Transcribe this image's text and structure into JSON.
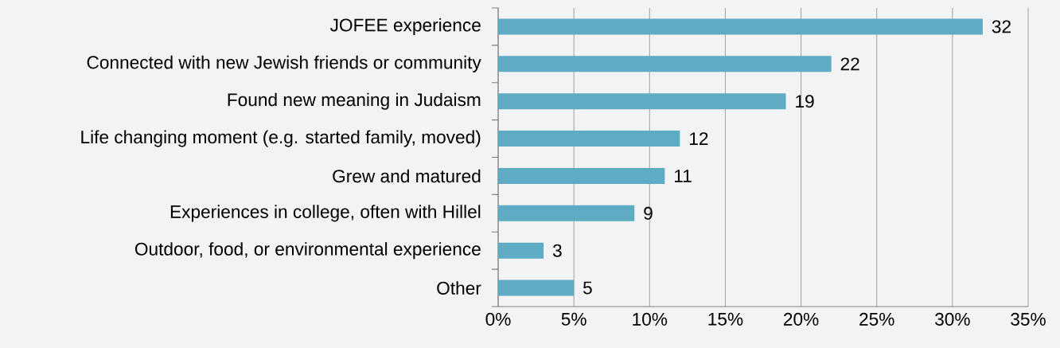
{
  "chart_data": {
    "type": "bar",
    "orientation": "horizontal",
    "categories": [
      "JOFEE experience",
      "Connected with new Jewish friends or community",
      "Found new meaning in Judaism",
      "Life changing moment (e.g. started family, moved)",
      "Grew and matured",
      "Experiences in college, often with Hillel",
      "Outdoor, food, or environmental experience",
      "Other"
    ],
    "values": [
      32,
      22,
      19,
      12,
      11,
      9,
      3,
      5
    ],
    "color": "#5eacc4",
    "data_labels": true,
    "xlim": [
      0,
      35
    ],
    "xticks": [
      {
        "value": 0,
        "label": "0%"
      },
      {
        "value": 5,
        "label": "5%"
      },
      {
        "value": 10,
        "label": "10%"
      },
      {
        "value": 15,
        "label": "15%"
      },
      {
        "value": 20,
        "label": "20%"
      },
      {
        "value": 25,
        "label": "25%"
      },
      {
        "value": 30,
        "label": "30%"
      },
      {
        "value": 35,
        "label": "35%"
      }
    ],
    "grid": "x"
  }
}
